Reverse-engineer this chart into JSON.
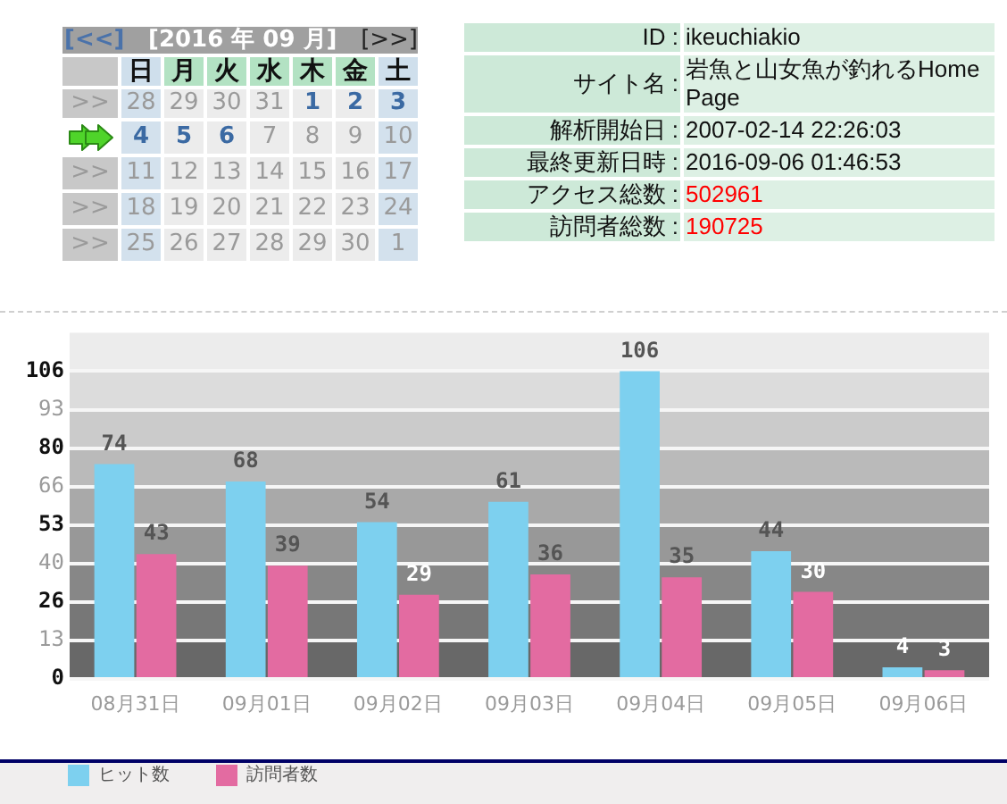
{
  "chart_data": [
    {
      "type": "heatmap",
      "title": "[2016 年 09 月]",
      "annotations": [
        "[<<]",
        "[>>]"
      ],
      "categories": [
        "日",
        "月",
        "火",
        "水",
        "木",
        "金",
        "土"
      ],
      "y_categories": [
        ">>",
        null,
        ">>",
        ">>",
        ">>"
      ],
      "cells": [
        [
          28,
          29,
          30,
          31,
          1,
          2,
          3
        ],
        [
          4,
          5,
          6,
          7,
          8,
          9,
          10
        ],
        [
          11,
          12,
          13,
          14,
          15,
          16,
          17
        ],
        [
          18,
          19,
          20,
          21,
          22,
          23,
          24
        ],
        [
          25,
          26,
          27,
          28,
          29,
          30,
          1
        ]
      ],
      "data_labels": true
    },
    {
      "type": "other",
      "y_categories": [
        "ID :",
        "サイト名 :",
        "解析開始日 :",
        "最終更新日時 :",
        "アクセス総数 :",
        "訪問者総数 :"
      ],
      "cell_labels": [
        [
          "ikeuchiakio"
        ],
        [
          "岩魚と山女魚が釣れるHome Page"
        ],
        [
          "2007-02-14 22:26:03"
        ],
        [
          "2016-09-06 01:46:53"
        ],
        [
          "502961"
        ],
        [
          "190725"
        ]
      ]
    },
    {
      "type": "bar",
      "categories": [
        "08月31日",
        "09月01日",
        "09月02日",
        "09月03日",
        "09月04日",
        "09月05日",
        "09月06日"
      ],
      "series": [
        {
          "name": "ヒット数",
          "color": "#7dd0ef",
          "values": [
            74,
            68,
            54,
            61,
            106,
            44,
            4
          ]
        },
        {
          "name": "訪問者数",
          "color": "#e36ba1",
          "values": [
            43,
            39,
            29,
            36,
            35,
            30,
            3
          ]
        }
      ],
      "ylim": [
        0,
        119.25
      ],
      "yticks": [
        0,
        {
          "value": 13.25,
          "label": "13"
        },
        {
          "value": 26.5,
          "label": "26"
        },
        {
          "value": 39.75,
          "label": "40"
        },
        53,
        {
          "value": 66.25,
          "label": "66"
        },
        {
          "value": 79.5,
          "label": "80"
        },
        {
          "value": 92.75,
          "label": "93"
        },
        106
      ],
      "bands": [
        {
          "axis": "y",
          "from": 0,
          "to": 13.25,
          "color": "#686868"
        },
        {
          "axis": "y",
          "from": 13.25,
          "to": 26.5,
          "color": "#777777"
        },
        {
          "axis": "y",
          "from": 26.5,
          "to": 39.75,
          "color": "#878787"
        },
        {
          "axis": "y",
          "from": 39.75,
          "to": 53,
          "color": "#989898"
        },
        {
          "axis": "y",
          "from": 53,
          "to": 66.25,
          "color": "#a9a9a9"
        },
        {
          "axis": "y",
          "from": 66.25,
          "to": 79.5,
          "color": "#bababa"
        },
        {
          "axis": "y",
          "from": 79.5,
          "to": 92.75,
          "color": "#cbcbcb"
        },
        {
          "axis": "y",
          "from": 92.75,
          "to": 106,
          "color": "#dcdcdc"
        },
        {
          "axis": "y",
          "from": 106,
          "to": 119.25,
          "color": "#ececec"
        }
      ],
      "grid": "y",
      "legend": "bottom left",
      "data_labels": true
    }
  ]
}
